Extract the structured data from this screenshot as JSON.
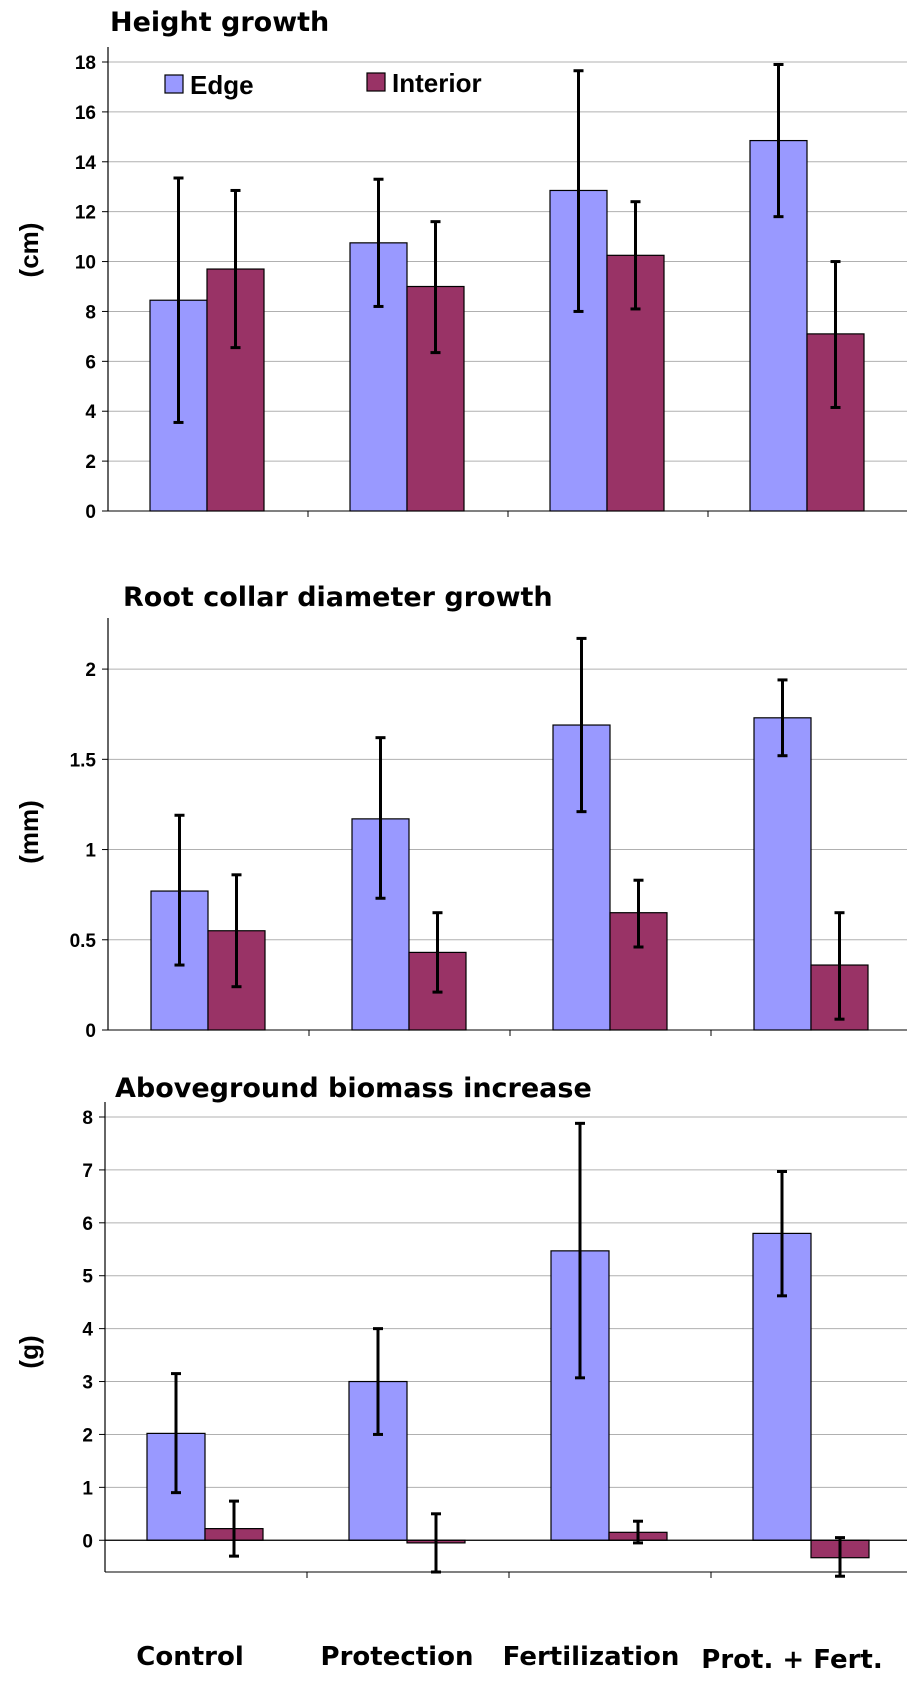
{
  "legend": {
    "edge_label": "Edge",
    "interior_label": "Interior"
  },
  "colors": {
    "edge": "#9999ff",
    "interior": "#993366",
    "grid": "#b0b0b0",
    "errorbar": "#000000"
  },
  "chart_data": [
    {
      "type": "bar",
      "title": "Height growth",
      "ylabel": "(cm)",
      "xlabel": "",
      "categories": [
        "Control",
        "Protection",
        "Fertilization",
        "Prot. + Fert."
      ],
      "ylim": [
        0,
        18
      ],
      "yticks": [
        0,
        2,
        4,
        6,
        8,
        10,
        12,
        14,
        16,
        18
      ],
      "ytick_labels": [
        "0",
        "2",
        "4",
        "6",
        "8",
        "10",
        "12",
        "14",
        "16",
        "18"
      ],
      "grid": true,
      "legend_position": "top-left",
      "series": [
        {
          "name": "Edge",
          "values": [
            8.45,
            10.75,
            12.85,
            14.85
          ],
          "err_low": [
            3.55,
            8.2,
            8.0,
            11.8
          ],
          "err_high": [
            13.35,
            13.3,
            17.65,
            17.9
          ]
        },
        {
          "name": "Interior",
          "values": [
            9.7,
            9.0,
            10.25,
            7.1
          ],
          "err_low": [
            6.55,
            6.35,
            8.1,
            4.15
          ],
          "err_high": [
            12.85,
            11.6,
            12.4,
            10.0
          ]
        }
      ]
    },
    {
      "type": "bar",
      "title": "Root collar diameter growth",
      "ylabel": "(mm)",
      "xlabel": "",
      "categories": [
        "Control",
        "Protection",
        "Fertilization",
        "Prot. + Fert."
      ],
      "ylim": [
        0,
        2.2
      ],
      "yticks": [
        0,
        0.5,
        1,
        1.5,
        2
      ],
      "ytick_labels": [
        "0",
        "0.5",
        "1",
        "1.5",
        "2"
      ],
      "grid": true,
      "series": [
        {
          "name": "Edge",
          "values": [
            0.77,
            1.17,
            1.69,
            1.73
          ],
          "err_low": [
            0.36,
            0.73,
            1.21,
            1.52
          ],
          "err_high": [
            1.19,
            1.62,
            2.17,
            1.94
          ]
        },
        {
          "name": "Interior",
          "values": [
            0.55,
            0.43,
            0.65,
            0.36
          ],
          "err_low": [
            0.24,
            0.21,
            0.46,
            0.06
          ],
          "err_high": [
            0.86,
            0.65,
            0.83,
            0.65
          ]
        }
      ]
    },
    {
      "type": "bar",
      "title": "Aboveground biomass increase",
      "ylabel": "(g)",
      "xlabel": "",
      "categories": [
        "Control",
        "Protection",
        "Fertilization",
        "Prot. + Fert."
      ],
      "ylim": [
        -0.6,
        8
      ],
      "yticks": [
        0,
        1,
        2,
        3,
        4,
        5,
        6,
        7,
        8
      ],
      "ytick_labels": [
        "0",
        "1",
        "2",
        "3",
        "4",
        "5",
        "6",
        "7",
        "8"
      ],
      "grid": true,
      "series": [
        {
          "name": "Edge",
          "values": [
            2.02,
            3.0,
            5.47,
            5.8
          ],
          "err_low": [
            0.9,
            2.0,
            3.07,
            4.62
          ],
          "err_high": [
            3.15,
            4.0,
            7.88,
            6.97
          ]
        },
        {
          "name": "Interior",
          "values": [
            0.22,
            -0.05,
            0.15,
            -0.33
          ],
          "err_low": [
            -0.3,
            -0.6,
            -0.05,
            -0.68
          ],
          "err_high": [
            0.74,
            0.5,
            0.36,
            0.05
          ]
        }
      ]
    }
  ]
}
